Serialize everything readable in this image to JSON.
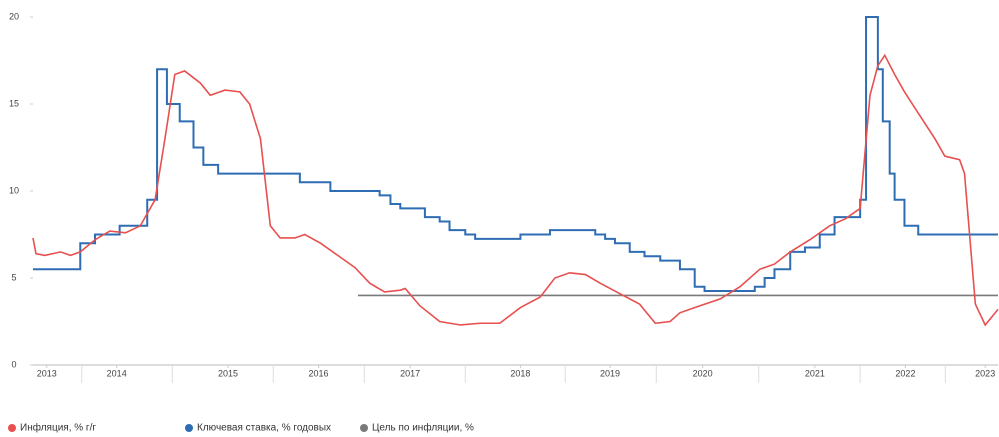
{
  "chart_data": {
    "type": "line",
    "xlim": [
      2013.7,
      2023.5
    ],
    "xticks": [
      {
        "value": 2013.84,
        "label": "2013"
      },
      {
        "value": 2014.55,
        "label": "2014"
      },
      {
        "value": 2015.68,
        "label": "2015"
      },
      {
        "value": 2016.6,
        "label": "2016"
      },
      {
        "value": 2017.53,
        "label": "2017"
      },
      {
        "value": 2018.65,
        "label": "2018"
      },
      {
        "value": 2019.56,
        "label": "2019"
      },
      {
        "value": 2020.5,
        "label": "2020"
      },
      {
        "value": 2021.64,
        "label": "2021"
      },
      {
        "value": 2022.56,
        "label": "2022"
      },
      {
        "value": 2023.37,
        "label": "2023"
      }
    ],
    "ylim": [
      0,
      20
    ],
    "yticks": [
      0,
      5,
      10,
      15,
      20
    ],
    "series": [
      {
        "name": "Инфляция, % г/г",
        "color": "#e8504f",
        "step": false,
        "x": [
          2013.7,
          2013.73,
          2013.82,
          2013.98,
          2014.08,
          2014.18,
          2014.33,
          2014.48,
          2014.64,
          2014.79,
          2014.94,
          2015.04,
          2015.14,
          2015.24,
          2015.4,
          2015.5,
          2015.65,
          2015.8,
          2015.9,
          2016.01,
          2016.11,
          2016.21,
          2016.36,
          2016.46,
          2016.62,
          2016.82,
          2016.97,
          2017.12,
          2017.27,
          2017.43,
          2017.48,
          2017.63,
          2017.83,
          2018.04,
          2018.24,
          2018.44,
          2018.65,
          2018.85,
          2019.0,
          2019.15,
          2019.31,
          2019.46,
          2019.66,
          2019.86,
          2020.02,
          2020.17,
          2020.27,
          2020.47,
          2020.68,
          2020.88,
          2021.08,
          2021.23,
          2021.39,
          2021.59,
          2021.79,
          2021.95,
          2022.1,
          2022.2,
          2022.28,
          2022.35,
          2022.45,
          2022.55,
          2022.71,
          2022.86,
          2022.96,
          2023.11,
          2023.16,
          2023.27,
          2023.37,
          2023.5
        ],
        "values": [
          7.3,
          6.4,
          6.3,
          6.5,
          6.3,
          6.5,
          7.2,
          7.7,
          7.6,
          8.0,
          9.5,
          13,
          16.7,
          16.9,
          16.2,
          15.5,
          15.8,
          15.7,
          15,
          13,
          8,
          7.3,
          7.3,
          7.5,
          7.0,
          6.2,
          5.6,
          4.7,
          4.2,
          4.3,
          4.4,
          3.4,
          2.5,
          2.3,
          2.4,
          2.4,
          3.3,
          3.9,
          5.0,
          5.3,
          5.2,
          4.7,
          4.1,
          3.5,
          2.4,
          2.5,
          3.0,
          3.4,
          3.8,
          4.5,
          5.5,
          5.8,
          6.5,
          7.2,
          8.0,
          8.4,
          9.0,
          15.5,
          17.2,
          17.8,
          16.7,
          15.7,
          14.3,
          13,
          12.0,
          11.8,
          11.0,
          3.5,
          2.3,
          3.2
        ]
      },
      {
        "name": "Ключевая ставка, % годовых",
        "color": "#2e6db4",
        "step": true,
        "x": [
          2013.7,
          2014.18,
          2014.33,
          2014.58,
          2014.86,
          2014.96,
          2015.06,
          2015.19,
          2015.33,
          2015.43,
          2015.58,
          2016.41,
          2016.72,
          2017.22,
          2017.33,
          2017.43,
          2017.68,
          2017.83,
          2017.93,
          2018.09,
          2018.19,
          2018.65,
          2018.95,
          2019.41,
          2019.51,
          2019.61,
          2019.76,
          2019.91,
          2020.07,
          2020.27,
          2020.42,
          2020.52,
          2021.03,
          2021.13,
          2021.23,
          2021.39,
          2021.54,
          2021.69,
          2021.84,
          2022.1,
          2022.16,
          2022.28,
          2022.33,
          2022.4,
          2022.45,
          2022.55,
          2022.69,
          2023.5
        ],
        "values": [
          5.5,
          7.0,
          7.5,
          8.0,
          9.5,
          17,
          15,
          14,
          12.5,
          11.5,
          11,
          10.5,
          10,
          9.75,
          9.25,
          9,
          8.5,
          8.25,
          7.75,
          7.5,
          7.25,
          7.5,
          7.75,
          7.5,
          7.25,
          7.0,
          6.5,
          6.25,
          6.0,
          5.5,
          4.5,
          4.25,
          4.5,
          5.0,
          5.5,
          6.5,
          6.75,
          7.5,
          8.5,
          9.5,
          20,
          17,
          14,
          11,
          9.5,
          8,
          7.5,
          7.5
        ]
      },
      {
        "name": "Цель по инфляции, %",
        "color": "#7a7a7a",
        "step": false,
        "x": [
          2017.0,
          2023.5
        ],
        "values": [
          4,
          4
        ]
      }
    ]
  }
}
